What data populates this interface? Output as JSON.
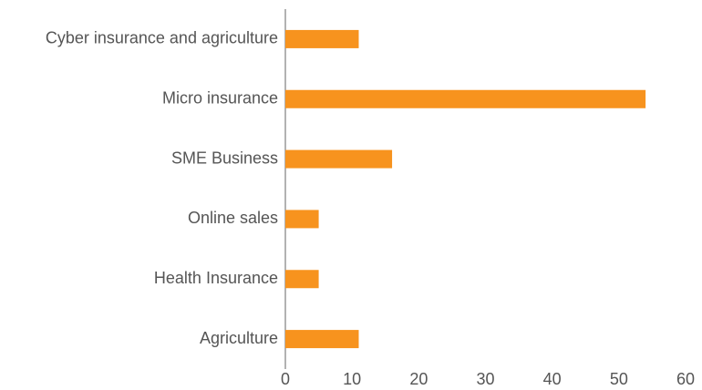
{
  "chart_data": {
    "type": "hbar",
    "categories": [
      "Cyber insurance and agriculture",
      "Micro insurance",
      "SME Business",
      "Online sales",
      "Health Insurance",
      "Agriculture"
    ],
    "values": [
      11,
      54,
      16,
      5,
      5,
      11
    ],
    "color": "#f7931e",
    "xlim": [
      0,
      60
    ],
    "xticks": [
      0,
      10,
      20,
      30,
      40,
      50,
      60
    ],
    "grid": false
  }
}
